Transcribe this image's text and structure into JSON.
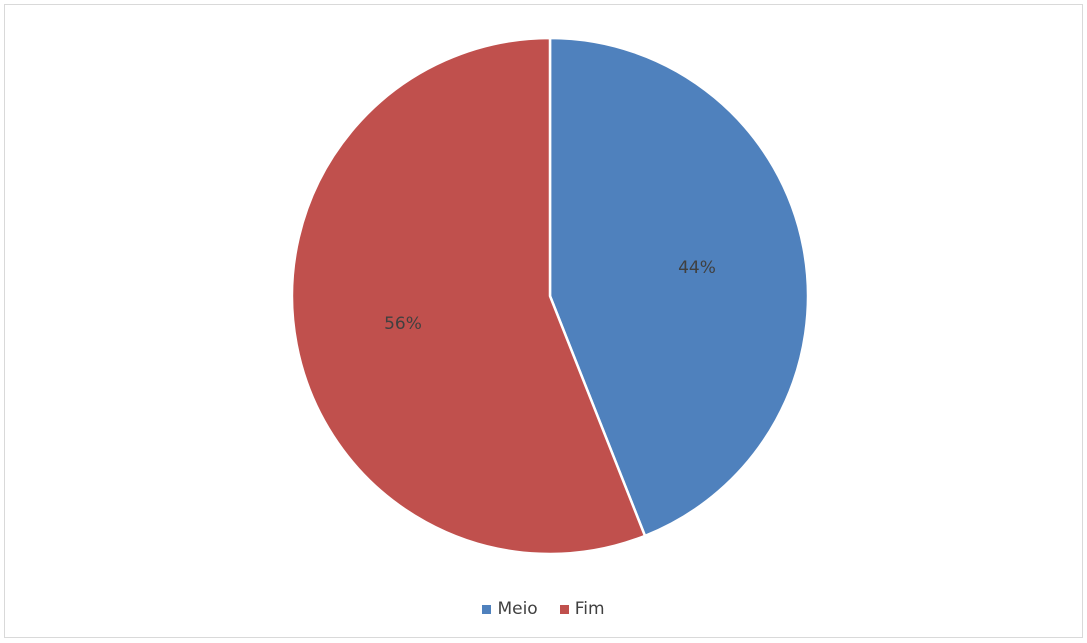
{
  "chart_data": {
    "type": "pie",
    "categories": [
      "Meio",
      "Fim"
    ],
    "values": [
      44,
      56
    ],
    "data_labels": [
      "44%",
      "56%"
    ],
    "colors": [
      "#4F81BD",
      "#C0504D"
    ],
    "title": "",
    "legend_position": "bottom",
    "start_angle_deg": 0,
    "direction": "clockwise"
  },
  "legend": {
    "items": [
      {
        "label": "Meio",
        "color": "#4F81BD"
      },
      {
        "label": "Fim",
        "color": "#C0504D"
      }
    ]
  }
}
